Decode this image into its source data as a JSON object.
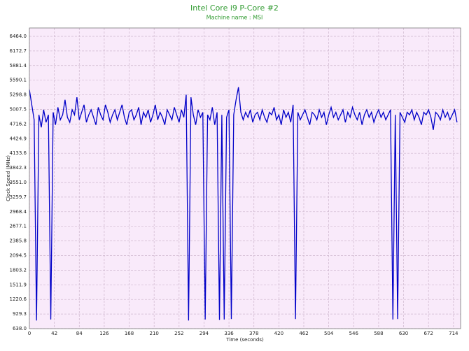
{
  "chart_data": {
    "type": "line",
    "title": "Intel Core i9 P-Core #2",
    "subtitle": "Machine name : MSI",
    "x_label": "Time (seconds)",
    "y_label": "Clock Speed (MHz)",
    "xlim": [
      0,
      726
    ],
    "ylim": [
      638,
      6631
    ],
    "xticks": [
      0,
      42,
      84,
      126,
      168,
      210,
      252,
      294,
      336,
      378,
      420,
      462,
      504,
      546,
      588,
      630,
      672,
      714
    ],
    "yticks": [
      {
        "value": 638,
        "label": "638.0"
      },
      929.3,
      1220.6,
      1511.9,
      1803.2,
      2094.5,
      2385.8,
      2677.1,
      2968.4,
      3259.7,
      {
        "value": 3551,
        "label": "3551.0"
      },
      3842.3,
      4133.6,
      4424.9,
      4716.2,
      5007.5,
      5298.8,
      5590.1,
      5881.4,
      6172.7,
      {
        "value": 6464,
        "label": "6464.0"
      }
    ],
    "grid": true,
    "series": [
      {
        "name": "P-Core #2",
        "color": "#0000c8",
        "x": [
          0,
          4,
          8,
          12,
          16,
          20,
          24,
          28,
          32,
          36,
          40,
          44,
          48,
          52,
          56,
          60,
          64,
          68,
          72,
          76,
          80,
          84,
          88,
          92,
          96,
          100,
          104,
          108,
          112,
          116,
          120,
          124,
          128,
          132,
          136,
          140,
          144,
          148,
          152,
          156,
          160,
          164,
          168,
          172,
          176,
          180,
          184,
          188,
          192,
          196,
          200,
          204,
          208,
          212,
          216,
          220,
          224,
          228,
          232,
          236,
          240,
          244,
          248,
          252,
          256,
          260,
          264,
          268,
          272,
          276,
          280,
          284,
          288,
          292,
          296,
          300,
          304,
          308,
          312,
          316,
          320,
          324,
          328,
          332,
          336,
          340,
          344,
          348,
          352,
          356,
          360,
          364,
          368,
          372,
          376,
          380,
          384,
          388,
          392,
          396,
          400,
          404,
          408,
          412,
          416,
          420,
          424,
          428,
          432,
          436,
          440,
          444,
          448,
          452,
          456,
          460,
          464,
          468,
          472,
          476,
          480,
          484,
          488,
          492,
          496,
          500,
          504,
          508,
          512,
          516,
          520,
          524,
          528,
          532,
          536,
          540,
          544,
          548,
          552,
          556,
          560,
          564,
          568,
          572,
          576,
          580,
          584,
          588,
          592,
          596,
          600,
          604,
          608,
          612,
          616,
          620,
          624,
          628,
          632,
          636,
          640,
          644,
          648,
          652,
          656,
          660,
          664,
          668,
          672,
          676,
          680,
          684,
          688,
          692,
          696,
          700,
          704,
          708,
          712,
          716,
          720
        ],
        "values": [
          5400,
          5100,
          4800,
          800,
          4900,
          4650,
          5000,
          4750,
          4900,
          820,
          4950,
          4700,
          5050,
          4800,
          4900,
          5200,
          4850,
          4750,
          5000,
          4900,
          5250,
          4800,
          4950,
          5100,
          4750,
          4900,
          5000,
          4850,
          4700,
          5050,
          4900,
          4800,
          5100,
          4950,
          4750,
          4900,
          5000,
          4800,
          4950,
          5100,
          4850,
          4700,
          4950,
          5000,
          4800,
          4900,
          5050,
          4700,
          4950,
          4850,
          5000,
          4750,
          4900,
          5100,
          4800,
          4950,
          4850,
          4700,
          5000,
          4900,
          4800,
          5050,
          4900,
          4750,
          5000,
          4850,
          5300,
          800,
          5250,
          4900,
          4700,
          5000,
          4850,
          4950,
          820,
          4900,
          4800,
          5050,
          4700,
          4950,
          810,
          4900,
          820,
          4850,
          5000,
          830,
          4900,
          5200,
          5450,
          4950,
          4800,
          4950,
          4850,
          5000,
          4750,
          4900,
          4950,
          4800,
          5000,
          4850,
          4750,
          4950,
          4900,
          5050,
          4800,
          4900,
          4700,
          5000,
          4850,
          4950,
          4750,
          5100,
          830,
          4950,
          4800,
          4900,
          5000,
          4850,
          4700,
          4950,
          4900,
          4800,
          5000,
          4850,
          4950,
          4700,
          4900,
          5050,
          4850,
          4950,
          4800,
          4900,
          5000,
          4750,
          4950,
          4850,
          5050,
          4900,
          4800,
          4950,
          4700,
          4900,
          5000,
          4850,
          4950,
          4750,
          4900,
          5000,
          4850,
          4950,
          4800,
          4900,
          5000,
          820,
          4900,
          830,
          4950,
          4850,
          4750,
          4950,
          4900,
          5000,
          4800,
          4950,
          4850,
          4700,
          4950,
          4900,
          5000,
          4850,
          4600,
          4950,
          4900,
          4800,
          5000,
          4850,
          4950,
          4800,
          4900,
          5000,
          4750
        ]
      }
    ]
  }
}
